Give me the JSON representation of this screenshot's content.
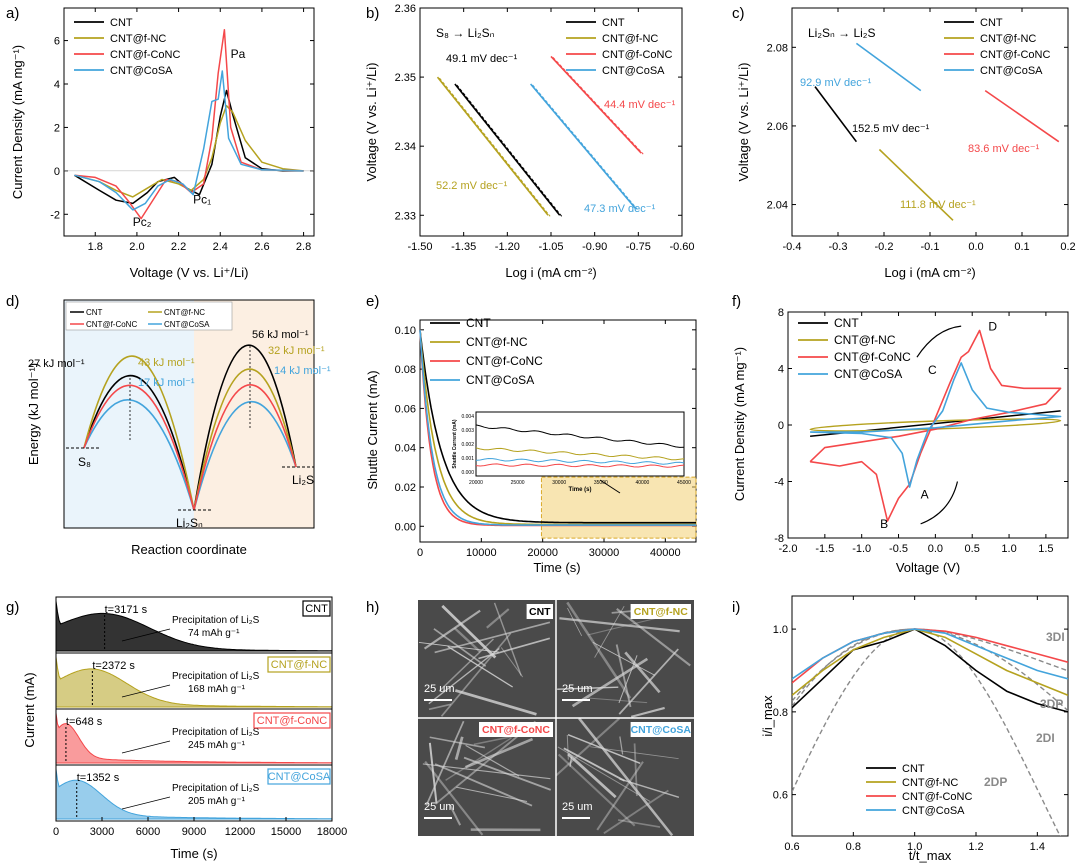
{
  "colors": {
    "cnt": "#000000",
    "fnc": "#b5a21f",
    "conc": "#f4484a",
    "cosa": "#43a4dc"
  },
  "legend_labels": [
    "CNT",
    "CNT@f-NC",
    "CNT@f-CoNC",
    "CNT@CoSA"
  ],
  "chart_data": [
    {
      "panel": "a)",
      "type": "line",
      "xlabel": "Voltage (V vs. Li⁺/Li)",
      "ylabel": "Current Density (mA mg⁻¹)",
      "xlim": [
        1.65,
        2.85
      ],
      "ylim": [
        -3,
        7.5
      ],
      "xticks": [
        1.8,
        2.0,
        2.2,
        2.4,
        2.6,
        2.8
      ],
      "yticks": [
        -2,
        0,
        2,
        4,
        6
      ],
      "annotations": [
        "Pa",
        "Pc₂",
        "Pc₁"
      ],
      "series": [
        {
          "name": "CNT",
          "x": [
            1.7,
            1.82,
            1.9,
            1.98,
            2.05,
            2.1,
            2.18,
            2.24,
            2.3,
            2.36,
            2.4,
            2.43,
            2.46,
            2.52,
            2.6,
            2.7,
            2.8
          ],
          "y": [
            -0.2,
            -0.9,
            -1.35,
            -1.5,
            -1.0,
            -0.5,
            -0.3,
            -0.8,
            -1.1,
            0.3,
            2.5,
            3.7,
            2.6,
            0.6,
            0.1,
            0.0,
            0.0
          ]
        },
        {
          "name": "CNT@f-NC",
          "x": [
            1.7,
            1.82,
            1.9,
            1.98,
            2.05,
            2.12,
            2.2,
            2.26,
            2.32,
            2.36,
            2.4,
            2.43,
            2.46,
            2.52,
            2.6,
            2.7,
            2.8
          ],
          "y": [
            -0.2,
            -0.5,
            -0.9,
            -1.2,
            -0.8,
            -0.4,
            -0.6,
            -0.9,
            -0.4,
            0.6,
            2.2,
            3.0,
            2.7,
            1.4,
            0.4,
            0.1,
            0.0
          ]
        },
        {
          "name": "CNT@f-CoNC",
          "x": [
            1.7,
            1.8,
            1.9,
            1.96,
            2.02,
            2.08,
            2.14,
            2.2,
            2.26,
            2.32,
            2.36,
            2.39,
            2.42,
            2.45,
            2.5,
            2.6,
            2.8
          ],
          "y": [
            -0.2,
            -0.3,
            -0.7,
            -1.4,
            -2.2,
            -1.3,
            -0.4,
            -0.5,
            -1.0,
            -0.6,
            1.5,
            4.5,
            6.5,
            2.0,
            0.4,
            0.05,
            0.0
          ]
        },
        {
          "name": "CNT@CoSA",
          "x": [
            1.7,
            1.82,
            1.9,
            1.98,
            2.04,
            2.1,
            2.16,
            2.22,
            2.27,
            2.32,
            2.36,
            2.39,
            2.41,
            2.44,
            2.5,
            2.6,
            2.8
          ],
          "y": [
            -0.2,
            -0.5,
            -1.0,
            -1.8,
            -1.5,
            -0.7,
            -0.4,
            -0.6,
            -1.1,
            1.0,
            3.2,
            3.3,
            4.6,
            1.5,
            0.3,
            0.05,
            0.0
          ]
        }
      ]
    },
    {
      "panel": "b)",
      "type": "line",
      "xlabel": "Log i (mA cm⁻²)",
      "ylabel": "Voltage (V vs. Li⁺/Li)",
      "xlim": [
        -1.5,
        -0.6
      ],
      "ylim": [
        2.327,
        2.36
      ],
      "xticks": [
        -1.5,
        -1.35,
        -1.2,
        -1.05,
        -0.9,
        -0.75,
        -0.6
      ],
      "yticks": [
        2.33,
        2.34,
        2.35,
        2.36
      ],
      "reaction_label": "S₈ → Li₂Sₙ",
      "tafel_labels": [
        "49.1 mV dec⁻¹",
        "52.2 mV dec⁻¹",
        "44.4 mV dec⁻¹",
        "47.3 mV dec⁻¹"
      ],
      "series": [
        {
          "name": "CNT",
          "x": [
            -1.38,
            -1.02
          ],
          "y": [
            2.349,
            2.33
          ]
        },
        {
          "name": "CNT@f-NC",
          "x": [
            -1.44,
            -1.06
          ],
          "y": [
            2.35,
            2.33
          ]
        },
        {
          "name": "CNT@f-CoNC",
          "x": [
            -1.05,
            -0.74
          ],
          "y": [
            2.353,
            2.339
          ]
        },
        {
          "name": "CNT@CoSA",
          "x": [
            -1.12,
            -0.76
          ],
          "y": [
            2.349,
            2.331
          ]
        }
      ]
    },
    {
      "panel": "c)",
      "type": "line",
      "xlabel": "Log i (mA cm⁻²)",
      "ylabel": "Voltage (V vs. Li⁺/Li)",
      "xlim": [
        -0.4,
        0.2
      ],
      "ylim": [
        2.032,
        2.09
      ],
      "xticks": [
        -0.4,
        -0.3,
        -0.2,
        -0.1,
        0.0,
        0.1,
        0.2
      ],
      "yticks": [
        2.04,
        2.06,
        2.08
      ],
      "reaction_label": "Li₂Sₙ → Li₂S",
      "tafel_labels": [
        "92.9 mV dec⁻¹",
        "152.5 mV dec⁻¹",
        "83.6 mV dec⁻¹",
        "111.8 mV dec⁻¹"
      ],
      "series": [
        {
          "name": "CNT",
          "x": [
            -0.35,
            -0.26
          ],
          "y": [
            2.07,
            2.056
          ]
        },
        {
          "name": "CNT@f-NC",
          "x": [
            -0.21,
            -0.05
          ],
          "y": [
            2.054,
            2.036
          ]
        },
        {
          "name": "CNT@f-CoNC",
          "x": [
            0.02,
            0.18
          ],
          "y": [
            2.069,
            2.056
          ]
        },
        {
          "name": "CNT@CoSA",
          "x": [
            -0.26,
            -0.12
          ],
          "y": [
            2.081,
            2.069
          ]
        }
      ]
    },
    {
      "panel": "d)",
      "type": "line",
      "xlabel": "Reaction coordinate",
      "ylabel": "Energy (kJ mol⁻¹)",
      "states": [
        "S₈",
        "Li₂Sₙ",
        "Li₂S"
      ],
      "barriers": [
        {
          "name": "CNT",
          "step1": 27,
          "step2": 56
        },
        {
          "name": "CNT@f-NC",
          "step1": 43,
          "step2": 32
        },
        {
          "name": "CNT@CoSA",
          "step1": 17,
          "step2": 14
        }
      ],
      "labels": [
        "27 kJ mol⁻¹",
        "43 kJ mol⁻¹",
        "17 kJ mol⁻¹",
        "56 kJ mol⁻¹",
        "32 kJ mol⁻¹",
        "14 kJ mol⁻¹"
      ]
    },
    {
      "panel": "e)",
      "type": "line",
      "xlabel": "Time (s)",
      "ylabel": "Shuttle Current (mA)",
      "xlim": [
        0,
        45000
      ],
      "ylim": [
        -0.008,
        0.105
      ],
      "xticks": [
        0,
        10000,
        20000,
        30000,
        40000
      ],
      "yticks": [
        0.0,
        0.02,
        0.04,
        0.06,
        0.08,
        0.1
      ],
      "inset": {
        "xlabel": "Time (s)",
        "ylabel": "Shuttle Current (mA)",
        "xticks": [
          20000,
          25000,
          30000,
          35000,
          40000,
          45000
        ],
        "yticks": [
          0.0,
          0.001,
          0.002,
          0.003,
          0.004
        ],
        "series": [
          {
            "name": "CNT",
            "start": 0.0033,
            "end": 0.0018
          },
          {
            "name": "CNT@f-NC",
            "start": 0.0017,
            "end": 0.0009
          },
          {
            "name": "CNT@f-CoNC",
            "start": 0.0005,
            "end": 0.0004
          },
          {
            "name": "CNT@CoSA",
            "start": 0.0009,
            "end": 0.0006
          }
        ]
      },
      "series": [
        {
          "name": "CNT",
          "initial": 0.1,
          "tau": 3500,
          "final": 0.0018
        },
        {
          "name": "CNT@f-NC",
          "initial": 0.1,
          "tau": 2600,
          "final": 0.0009
        },
        {
          "name": "CNT@f-CoNC",
          "initial": 0.1,
          "tau": 1800,
          "final": 0.0004
        },
        {
          "name": "CNT@CoSA",
          "initial": 0.1,
          "tau": 2000,
          "final": 0.0006
        }
      ]
    },
    {
      "panel": "f)",
      "type": "line",
      "xlabel": "Voltage (V)",
      "ylabel": "Current Density (mA mg⁻¹)",
      "xlim": [
        -2.0,
        1.8
      ],
      "ylim": [
        -8,
        8
      ],
      "xticks": [
        -2.0,
        -1.5,
        -1.0,
        -0.5,
        0.0,
        0.5,
        1.0,
        1.5
      ],
      "yticks": [
        -8,
        -4,
        0,
        4,
        8
      ],
      "annotations": [
        "A",
        "B",
        "C",
        "D"
      ],
      "series": [
        {
          "name": "CNT",
          "x": [
            -1.7,
            1.7
          ],
          "y": [
            -0.8,
            1.0
          ]
        },
        {
          "name": "CNT@f-NC",
          "x": [
            -1.7,
            1.7
          ],
          "y": [
            -0.4,
            0.4
          ]
        },
        {
          "name": "CNT@f-CoNC",
          "peak_oxidation": 6.7,
          "peak_reduction": -6.8
        },
        {
          "name": "CNT@CoSA",
          "peak_oxidation": 4.4,
          "peak_reduction": -4.4
        }
      ]
    },
    {
      "panel": "g)",
      "type": "area",
      "xlabel": "Time (s)",
      "ylabel": "Current (mA)",
      "xlim": [
        0,
        18000
      ],
      "xticks": [
        0,
        3000,
        6000,
        9000,
        12000,
        15000,
        18000
      ],
      "series": [
        {
          "name": "CNT",
          "peak_time": "t=3171 s",
          "capacity": "74 mAh g⁻¹"
        },
        {
          "name": "CNT@f-NC",
          "peak_time": "t=2372 s",
          "capacity": "168 mAh g⁻¹"
        },
        {
          "name": "CNT@f-CoNC",
          "peak_time": "t=648 s",
          "capacity": "245 mAh g⁻¹"
        },
        {
          "name": "CNT@CoSA",
          "peak_time": "t=1352 s",
          "capacity": "205 mAh g⁻¹"
        }
      ],
      "precipitation_label": "Precipitation of Li₂S"
    },
    {
      "panel": "h)",
      "type": "image",
      "labels": [
        "CNT",
        "CNT@f-NC",
        "CNT@f-CoNC",
        "CNT@CoSA"
      ],
      "scale": "25 um"
    },
    {
      "panel": "i)",
      "type": "line",
      "xlabel": "t/t_max",
      "ylabel": "i/i_max",
      "xlim": [
        0.6,
        1.5
      ],
      "ylim": [
        0.5,
        1.08
      ],
      "xticks": [
        0.6,
        0.8,
        1.0,
        1.2,
        1.4
      ],
      "yticks": [
        0.6,
        0.8,
        1.0
      ],
      "models": [
        "3DI",
        "3DP",
        "2DI",
        "2DP"
      ],
      "series": [
        {
          "name": "CNT",
          "x": [
            0.6,
            0.7,
            0.8,
            0.9,
            1.0,
            1.1,
            1.2,
            1.3,
            1.4,
            1.5
          ],
          "y": [
            0.81,
            0.88,
            0.95,
            0.97,
            1.0,
            0.96,
            0.9,
            0.85,
            0.82,
            0.8
          ]
        },
        {
          "name": "CNT@f-NC",
          "x": [
            0.6,
            0.7,
            0.8,
            0.9,
            1.0,
            1.1,
            1.2,
            1.3,
            1.4,
            1.5
          ],
          "y": [
            0.84,
            0.9,
            0.95,
            0.98,
            1.0,
            0.98,
            0.94,
            0.9,
            0.87,
            0.84
          ]
        },
        {
          "name": "CNT@f-CoNC",
          "x": [
            0.6,
            0.7,
            0.8,
            0.9,
            1.0,
            1.1,
            1.2,
            1.3,
            1.4,
            1.5
          ],
          "y": [
            0.87,
            0.93,
            0.97,
            0.99,
            1.0,
            0.995,
            0.98,
            0.96,
            0.94,
            0.92
          ]
        },
        {
          "name": "CNT@CoSA",
          "x": [
            0.6,
            0.7,
            0.8,
            0.9,
            1.0,
            1.1,
            1.2,
            1.3,
            1.4,
            1.5
          ],
          "y": [
            0.88,
            0.93,
            0.97,
            0.99,
            1.0,
            0.99,
            0.96,
            0.93,
            0.9,
            0.88
          ]
        }
      ]
    }
  ]
}
